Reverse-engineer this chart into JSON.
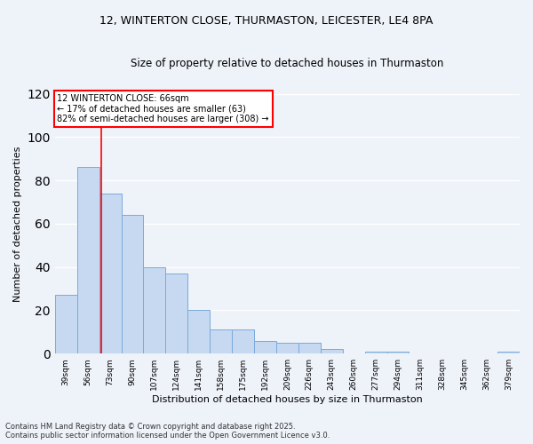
{
  "title_line1": "12, WINTERTON CLOSE, THURMASTON, LEICESTER, LE4 8PA",
  "title_line2": "Size of property relative to detached houses in Thurmaston",
  "xlabel": "Distribution of detached houses by size in Thurmaston",
  "ylabel": "Number of detached properties",
  "categories": [
    "39sqm",
    "56sqm",
    "73sqm",
    "90sqm",
    "107sqm",
    "124sqm",
    "141sqm",
    "158sqm",
    "175sqm",
    "192sqm",
    "209sqm",
    "226sqm",
    "243sqm",
    "260sqm",
    "277sqm",
    "294sqm",
    "311sqm",
    "328sqm",
    "345sqm",
    "362sqm",
    "379sqm"
  ],
  "values": [
    27,
    86,
    74,
    64,
    40,
    37,
    20,
    11,
    11,
    6,
    5,
    5,
    2,
    0,
    1,
    1,
    0,
    0,
    0,
    0,
    1
  ],
  "bar_color": "#c6d9f0",
  "bar_edge_color": "#7aaadc",
  "annotation_title": "12 WINTERTON CLOSE: 66sqm",
  "annotation_line2": "← 17% of detached houses are smaller (63)",
  "annotation_line3": "82% of semi-detached houses are larger (308) →",
  "ylim": [
    0,
    120
  ],
  "yticks": [
    0,
    20,
    40,
    60,
    80,
    100,
    120
  ],
  "footnote_line1": "Contains HM Land Registry data © Crown copyright and database right 2025.",
  "footnote_line2": "Contains public sector information licensed under the Open Government Licence v3.0.",
  "background_color": "#eef2f9",
  "grid_color": "#ffffff"
}
